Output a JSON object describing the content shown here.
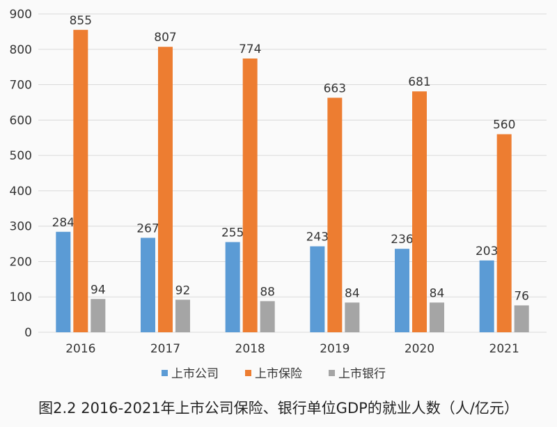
{
  "chart_data": {
    "type": "bar",
    "categories": [
      "2016",
      "2017",
      "2018",
      "2019",
      "2020",
      "2021"
    ],
    "series": [
      {
        "name": "上市公司",
        "values": [
          284,
          267,
          255,
          243,
          236,
          203
        ],
        "color": "#5B9BD5"
      },
      {
        "name": "上市保险",
        "values": [
          855,
          807,
          774,
          663,
          681,
          560
        ],
        "color": "#ED7D31"
      },
      {
        "name": "上市银行",
        "values": [
          94,
          92,
          88,
          84,
          84,
          76
        ],
        "color": "#A5A5A5"
      }
    ],
    "ylim": [
      0,
      900
    ],
    "yticks": [
      0,
      100,
      200,
      300,
      400,
      500,
      600,
      700,
      800,
      900
    ],
    "grid": true,
    "legend_position": "bottom",
    "title": "图2.2 2016-2021年上市公司保险、银行单位GDP的就业人数（人/亿元）"
  }
}
